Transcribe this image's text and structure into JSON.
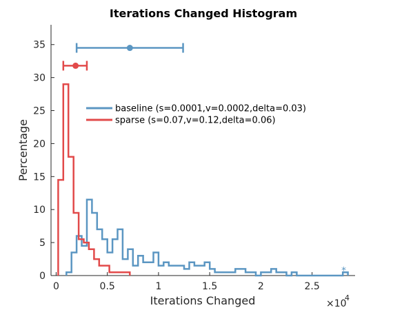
{
  "chart_data": {
    "type": "histogram",
    "title": "Iterations Changed Histogram",
    "xlabel": "Iterations Changed",
    "ylabel": "Percentage",
    "x_exponent_label": "×10",
    "x_exponent_power": "4",
    "xlim": [
      -0.05,
      2.92
    ],
    "ylim": [
      0,
      38
    ],
    "xticks": [
      0,
      0.5,
      1,
      1.5,
      2,
      2.5
    ],
    "xtick_labels": [
      "0",
      "0.5",
      "1",
      "1.5",
      "2",
      "2.5"
    ],
    "yticks": [
      0,
      5,
      10,
      15,
      20,
      25,
      30,
      35
    ],
    "ytick_labels": [
      "0",
      "5",
      "10",
      "15",
      "20",
      "25",
      "30",
      "35"
    ],
    "bin_width": 0.1,
    "legend_position": "center-right",
    "series": [
      {
        "name": "baseline (s=0.0001,v=0.0002,delta=0.03)",
        "color": "#5b96c2",
        "bin_starts": [
          0.1,
          0.15,
          0.2,
          0.25,
          0.3,
          0.35,
          0.4,
          0.45,
          0.5,
          0.55,
          0.6,
          0.65,
          0.7,
          0.75,
          0.8,
          0.85,
          0.9,
          0.95,
          1.0,
          1.05,
          1.1,
          1.15,
          1.2,
          1.25,
          1.3,
          1.35,
          1.4,
          1.45,
          1.5,
          1.55,
          1.6,
          1.65,
          1.7,
          1.75,
          1.8,
          1.85,
          1.9,
          1.95,
          2.0,
          2.05,
          2.1,
          2.15,
          2.2,
          2.25,
          2.3,
          2.35,
          2.4,
          2.45,
          2.5,
          2.55,
          2.6,
          2.65,
          2.7,
          2.75,
          2.8
        ],
        "values": [
          0.5,
          3.5,
          6,
          4.5,
          11.5,
          9.5,
          7,
          5.5,
          3.5,
          5.5,
          7,
          2.5,
          4,
          1.5,
          3,
          2,
          2,
          3.5,
          1.5,
          2,
          1.5,
          1.5,
          1.5,
          1,
          2,
          1.5,
          1.5,
          2,
          1,
          0.5,
          0.5,
          0.5,
          0.5,
          1,
          1,
          0.5,
          0.5,
          0,
          0.5,
          0.5,
          1,
          0.5,
          0.5,
          0,
          0.5,
          0,
          0,
          0,
          0,
          0,
          0,
          0,
          0,
          0,
          0.5
        ],
        "marker_annotation": "*",
        "marker_annotation_x": 2.81,
        "marker_annotation_y": 0.9,
        "mean": 0.72,
        "errorbar": [
          0.2,
          1.24
        ],
        "errorbar_y": 34.5
      },
      {
        "name": "sparse (s=0.07,v=0.12,delta=0.06)",
        "color": "#e24a4a",
        "bin_starts": [
          0.02,
          0.07,
          0.12,
          0.17,
          0.22,
          0.27,
          0.32,
          0.37,
          0.42,
          0.47,
          0.52,
          0.57,
          0.62,
          0.67
        ],
        "values": [
          14.5,
          29,
          18,
          9.5,
          5.5,
          5,
          4,
          2.5,
          1.5,
          1.5,
          0.5,
          0.5,
          0.5,
          0.5
        ],
        "mean": 0.19,
        "errorbar": [
          0.07,
          0.3
        ],
        "errorbar_y": 31.8
      }
    ]
  }
}
